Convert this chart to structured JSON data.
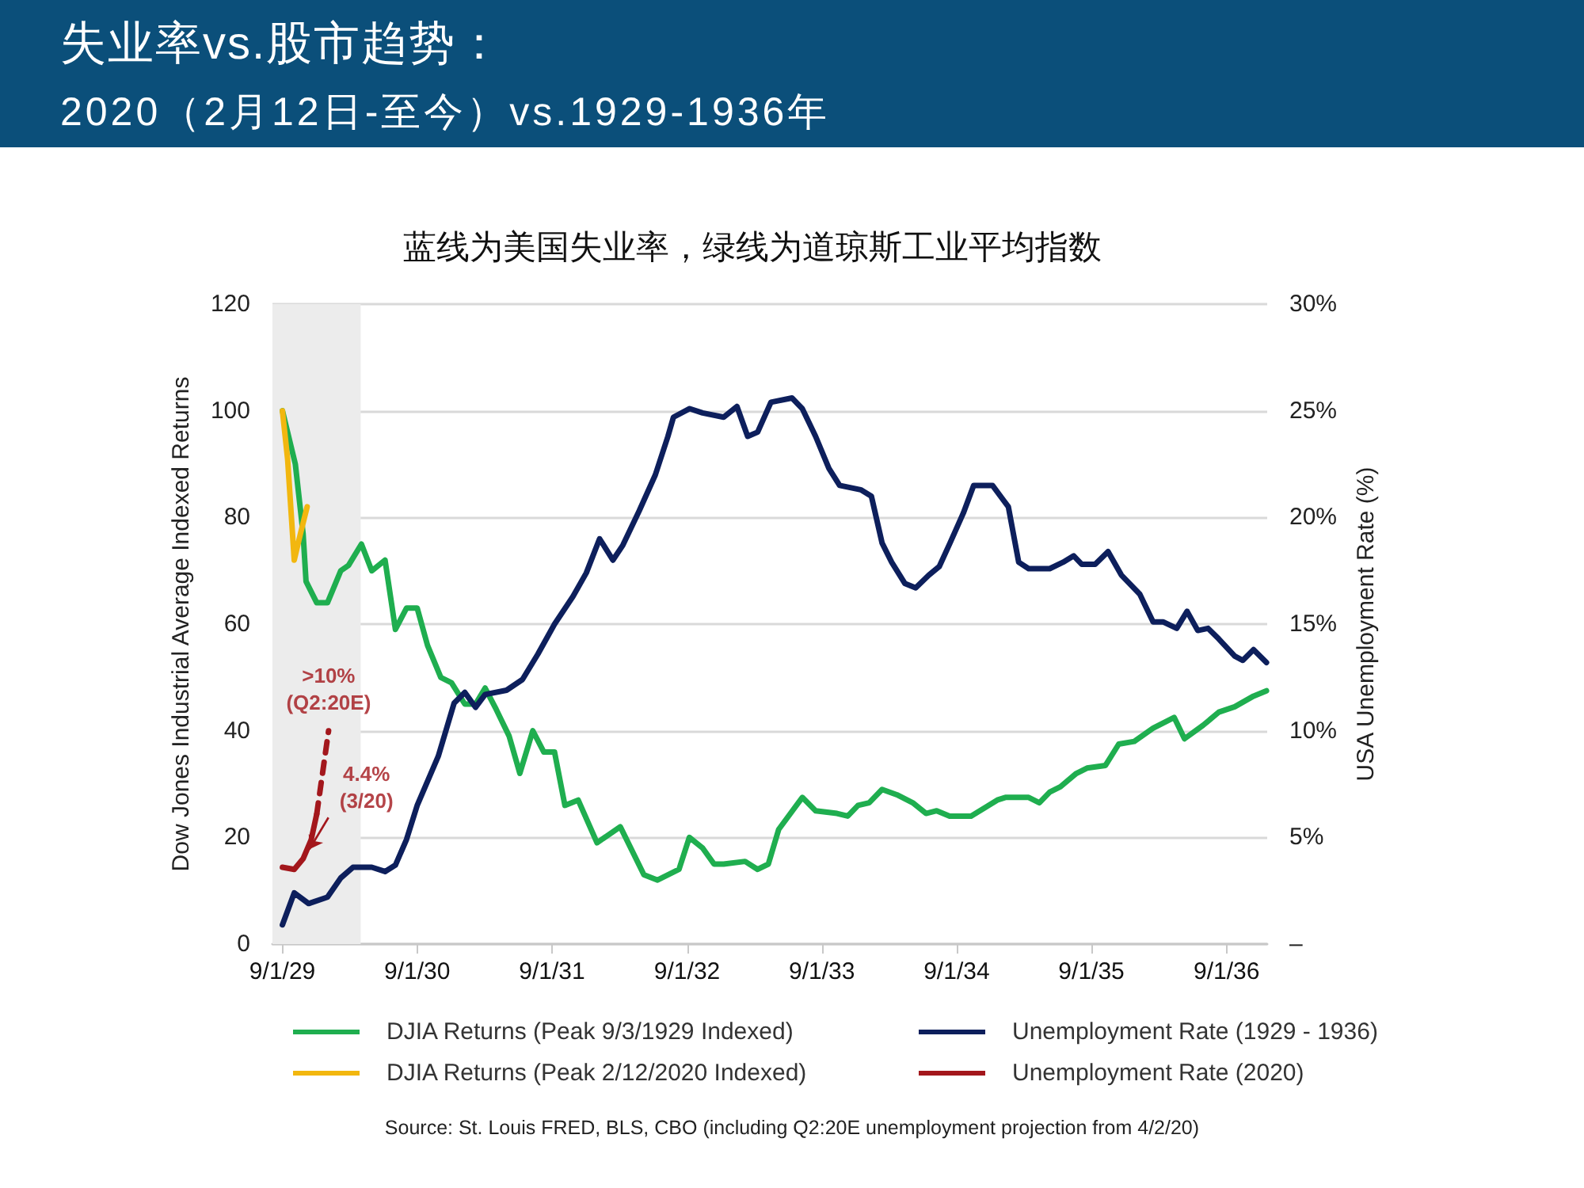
{
  "chart_data": {
    "type": "line",
    "title": "失业率vs.股市趋势：",
    "subtitle": "2020（2月12日-至今）vs.1929-1936年",
    "ylabel": "Dow Jones Industrial Average Indexed Returns",
    "y2label": "USA Unemployment Rate (%)",
    "xlim": [
      "1929-08-05",
      "1936-12-20"
    ],
    "xticks": [
      {
        "value": "1929-09-01",
        "label": "9/1/29"
      },
      {
        "value": "1930-09-01",
        "label": "9/1/30"
      },
      {
        "value": "1931-09-01",
        "label": "9/1/31"
      },
      {
        "value": "1932-09-01",
        "label": "9/1/32"
      },
      {
        "value": "1933-09-01",
        "label": "9/1/33"
      },
      {
        "value": "1934-09-01",
        "label": "9/1/34"
      },
      {
        "value": "1935-09-01",
        "label": "9/1/35"
      },
      {
        "value": "1936-09-01",
        "label": "9/1/36"
      }
    ],
    "ylim": [
      0,
      120
    ],
    "yticks": [
      0,
      20,
      40,
      60,
      80,
      100,
      120
    ],
    "y2lim": [
      0,
      30
    ],
    "y2ticks": [
      {
        "value": 0,
        "label": "–"
      },
      {
        "value": 5,
        "label": "5%"
      },
      {
        "value": 10,
        "label": "10%"
      },
      {
        "value": 15,
        "label": "15%"
      },
      {
        "value": 20,
        "label": "20%"
      },
      {
        "value": 25,
        "label": "25%"
      },
      {
        "value": 30,
        "label": "30%"
      }
    ],
    "grid": "y",
    "legend": "bottom",
    "bands": [
      {
        "axis": "x",
        "from": "1929-08-05",
        "to": "1930-04-01",
        "color": "#ececec"
      }
    ],
    "series": [
      {
        "name": "DJIA Returns (Peak 9/3/1929 Indexed)",
        "color": "#1fae4f",
        "axis": "y",
        "x": [
          "1929-09-01",
          "1929-10-06",
          "1929-10-27",
          "1929-11-04",
          "1929-12-03",
          "1930-01-01",
          "1930-02-06",
          "1930-02-27",
          "1930-04-03",
          "1930-05-01",
          "1930-06-06",
          "1930-07-04",
          "1930-08-03",
          "1930-09-01",
          "1930-09-29",
          "1930-11-04",
          "1930-12-03",
          "1931-01-08",
          "1931-02-06",
          "1931-03-04",
          "1931-04-03",
          "1931-05-08",
          "1931-06-06",
          "1931-07-11",
          "1931-08-10",
          "1931-09-08",
          "1931-10-06",
          "1931-11-11",
          "1932-01-01",
          "1932-03-04",
          "1932-05-07",
          "1932-06-13",
          "1932-08-10",
          "1932-09-07",
          "1932-10-13",
          "1932-11-13",
          "1932-12-09",
          "1933-02-05",
          "1933-03-11",
          "1933-04-09",
          "1933-05-07",
          "1933-07-10",
          "1933-08-15",
          "1933-10-12",
          "1933-11-10",
          "1933-12-08",
          "1934-01-07",
          "1934-02-11",
          "1934-03-23",
          "1934-05-05",
          "1934-06-10",
          "1934-07-09",
          "1934-08-13",
          "1934-10-10",
          "1934-11-15",
          "1934-12-20",
          "1935-01-11",
          "1935-02-09",
          "1935-03-15",
          "1935-04-13",
          "1935-05-11",
          "1935-06-09",
          "1935-07-22",
          "1935-08-20",
          "1935-10-09",
          "1935-11-14",
          "1935-12-26",
          "1936-02-15",
          "1936-04-12",
          "1936-05-10",
          "1936-06-29",
          "1936-08-11",
          "1936-09-23",
          "1936-11-13",
          "1936-12-18"
        ],
        "values": [
          100,
          90,
          77,
          68,
          64,
          64,
          70,
          71,
          75,
          70,
          72,
          59,
          63,
          63,
          56,
          50,
          49,
          45,
          45,
          48,
          44,
          39,
          32,
          40,
          36,
          36,
          26,
          27,
          19,
          22,
          13,
          12,
          14,
          20,
          18,
          15,
          15,
          15.5,
          14,
          15,
          21.5,
          27.5,
          25,
          24.5,
          24,
          26,
          26.5,
          29,
          28,
          26.5,
          24.5,
          25,
          24,
          24,
          25.5,
          27,
          27.5,
          27.5,
          27.5,
          26.5,
          28.5,
          29.5,
          32,
          33,
          33.5,
          37.5,
          38,
          40.5,
          42.5,
          38.5,
          41,
          43.5,
          44.5,
          46.5,
          47.5
        ]
      },
      {
        "name": "DJIA Returns (Peak 2/12/2020 Indexed)",
        "color": "#f2b70f",
        "axis": "y",
        "x": [
          "1929-09-01",
          "1929-09-15",
          "1929-10-03",
          "1929-10-20",
          "1929-11-07"
        ],
        "values": [
          100,
          91,
          72,
          77,
          82
        ]
      },
      {
        "name": "Unemployment Rate (1929 - 1936)",
        "color": "#0d1f5c",
        "axis": "y2",
        "x": [
          "1929-09-01",
          "1929-10-03",
          "1929-11-11",
          "1930-01-01",
          "1930-02-06",
          "1930-03-11",
          "1930-05-01",
          "1930-06-06",
          "1930-07-04",
          "1930-08-03",
          "1930-09-01",
          "1930-10-28",
          "1930-12-10",
          "1931-01-08",
          "1931-02-06",
          "1931-03-04",
          "1931-05-01",
          "1931-06-13",
          "1931-07-25",
          "1931-09-08",
          "1931-10-28",
          "1931-12-03",
          "1932-01-08",
          "1932-02-13",
          "1932-03-11",
          "1932-04-24",
          "1932-06-07",
          "1932-07-11",
          "1932-07-26",
          "1932-09-08",
          "1932-10-13",
          "1932-12-09",
          "1933-01-14",
          "1933-02-12",
          "1933-03-11",
          "1933-04-16",
          "1933-06-12",
          "1933-07-10",
          "1933-08-15",
          "1933-09-20",
          "1933-10-19",
          "1933-12-15",
          "1934-01-13",
          "1934-02-11",
          "1934-03-09",
          "1934-04-14",
          "1934-05-13",
          "1934-06-18",
          "1934-07-16",
          "1934-08-14",
          "1934-09-19",
          "1934-10-17",
          "1934-12-07",
          "1935-01-19",
          "1935-02-16",
          "1935-03-15",
          "1935-05-11",
          "1935-06-16",
          "1935-07-15",
          "1935-08-06",
          "1935-09-11",
          "1935-10-16",
          "1935-11-21",
          "1936-01-10",
          "1936-02-15",
          "1936-03-14",
          "1936-04-19",
          "1936-05-17",
          "1936-06-15",
          "1936-07-13",
          "1936-08-11",
          "1936-09-23",
          "1936-10-15",
          "1936-11-13",
          "1936-12-18"
        ],
        "values": [
          0.9,
          2.4,
          1.9,
          2.2,
          3.1,
          3.6,
          3.6,
          3.4,
          3.7,
          4.9,
          6.5,
          8.8,
          11.3,
          11.8,
          11.1,
          11.7,
          11.9,
          12.4,
          13.6,
          15.0,
          16.3,
          17.4,
          19.0,
          18.0,
          18.7,
          20.3,
          22.0,
          23.8,
          24.7,
          25.1,
          24.9,
          24.7,
          25.2,
          23.8,
          24.0,
          25.4,
          25.6,
          25.1,
          23.8,
          22.3,
          21.5,
          21.3,
          21.0,
          18.8,
          17.9,
          16.9,
          16.7,
          17.3,
          17.7,
          18.8,
          20.2,
          21.5,
          21.5,
          20.5,
          17.9,
          17.6,
          17.6,
          17.9,
          18.2,
          17.8,
          17.8,
          18.4,
          17.3,
          16.4,
          15.1,
          15.1,
          14.8,
          15.6,
          14.7,
          14.8,
          14.3,
          13.5,
          13.3,
          13.8,
          13.2
        ]
      },
      {
        "name": "Unemployment Rate (2020)",
        "color": "#a3171c",
        "axis": "y2",
        "x": [
          "1929-09-01",
          "1929-10-03",
          "1929-10-27",
          "1929-11-18",
          "1929-12-03"
        ],
        "values": [
          3.6,
          3.5,
          4.0,
          4.9,
          6.1
        ]
      },
      {
        "color": "#a3171c",
        "axis": "y2",
        "line_style": "dashed",
        "x": [
          "1929-12-03",
          "1930-01-04"
        ],
        "values": [
          6.1,
          10
        ]
      }
    ],
    "annotations": [
      "蓝线为美国失业率，绿线为道琼斯工业平均指数",
      {
        "text": ">10%\n(Q2:20E)",
        "x": "1930-01-04",
        "y": 40
      },
      {
        "text": "4.4%\n(3/20)",
        "x": "1929-10-27",
        "y": 16
      },
      "Source: St. Louis FRED, BLS, CBO (including Q2:20E unemployment projection from 4/2/20)"
    ]
  }
}
